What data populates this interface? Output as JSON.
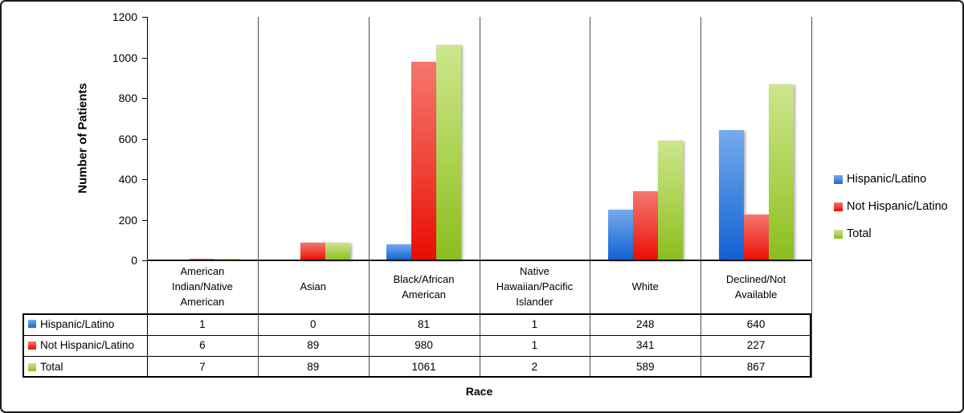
{
  "chart_data": {
    "type": "bar",
    "title": "",
    "xlabel": "Race",
    "ylabel": "Number of Patients",
    "ylim": [
      0,
      1200
    ],
    "ytick_step": 200,
    "grid": "vertical-category-separators",
    "legend_position": "right-middle",
    "categories": [
      "American Indian/Native American",
      "Asian",
      "Black/African American",
      "Native Hawaiian/Pacific Islander",
      "White",
      "Declined/Not Available"
    ],
    "categories_display": [
      "American\nIndian/Native\nAmerican",
      "Asian",
      "Black/African\nAmerican",
      "Native\nHawaiian/Pacific\nIslander",
      "White",
      "Declined/Not\nAvailable"
    ],
    "series": [
      {
        "name": "Hispanic/Latino",
        "color": "#2e75d8",
        "color_top": "#76aaec",
        "color_bottom": "#1460d2",
        "values": [
          1,
          0,
          81,
          1,
          248,
          640
        ]
      },
      {
        "name": "Not Hispanic/Latino",
        "color": "#ea0b02",
        "color_top": "#f5766e",
        "color_bottom": "#ea0b02",
        "values": [
          6,
          89,
          980,
          1,
          341,
          227
        ]
      },
      {
        "name": "Total",
        "color": "#8cbd1e",
        "color_top": "#cde68d",
        "color_bottom": "#8cbd1e",
        "values": [
          7,
          89,
          1061,
          2,
          589,
          867
        ]
      }
    ]
  },
  "data_table": {
    "row_headers": [
      "Hispanic/Latino",
      "Not Hispanic/Latino",
      "Total"
    ],
    "rows": [
      [
        "1",
        "0",
        "81",
        "1",
        "248",
        "640"
      ],
      [
        "6",
        "89",
        "980",
        "1",
        "341",
        "227"
      ],
      [
        "7",
        "89",
        "1061",
        "2",
        "589",
        "867"
      ]
    ]
  },
  "legend": {
    "items": [
      "Hispanic/Latino",
      "Not Hispanic/Latino",
      "Total"
    ]
  }
}
